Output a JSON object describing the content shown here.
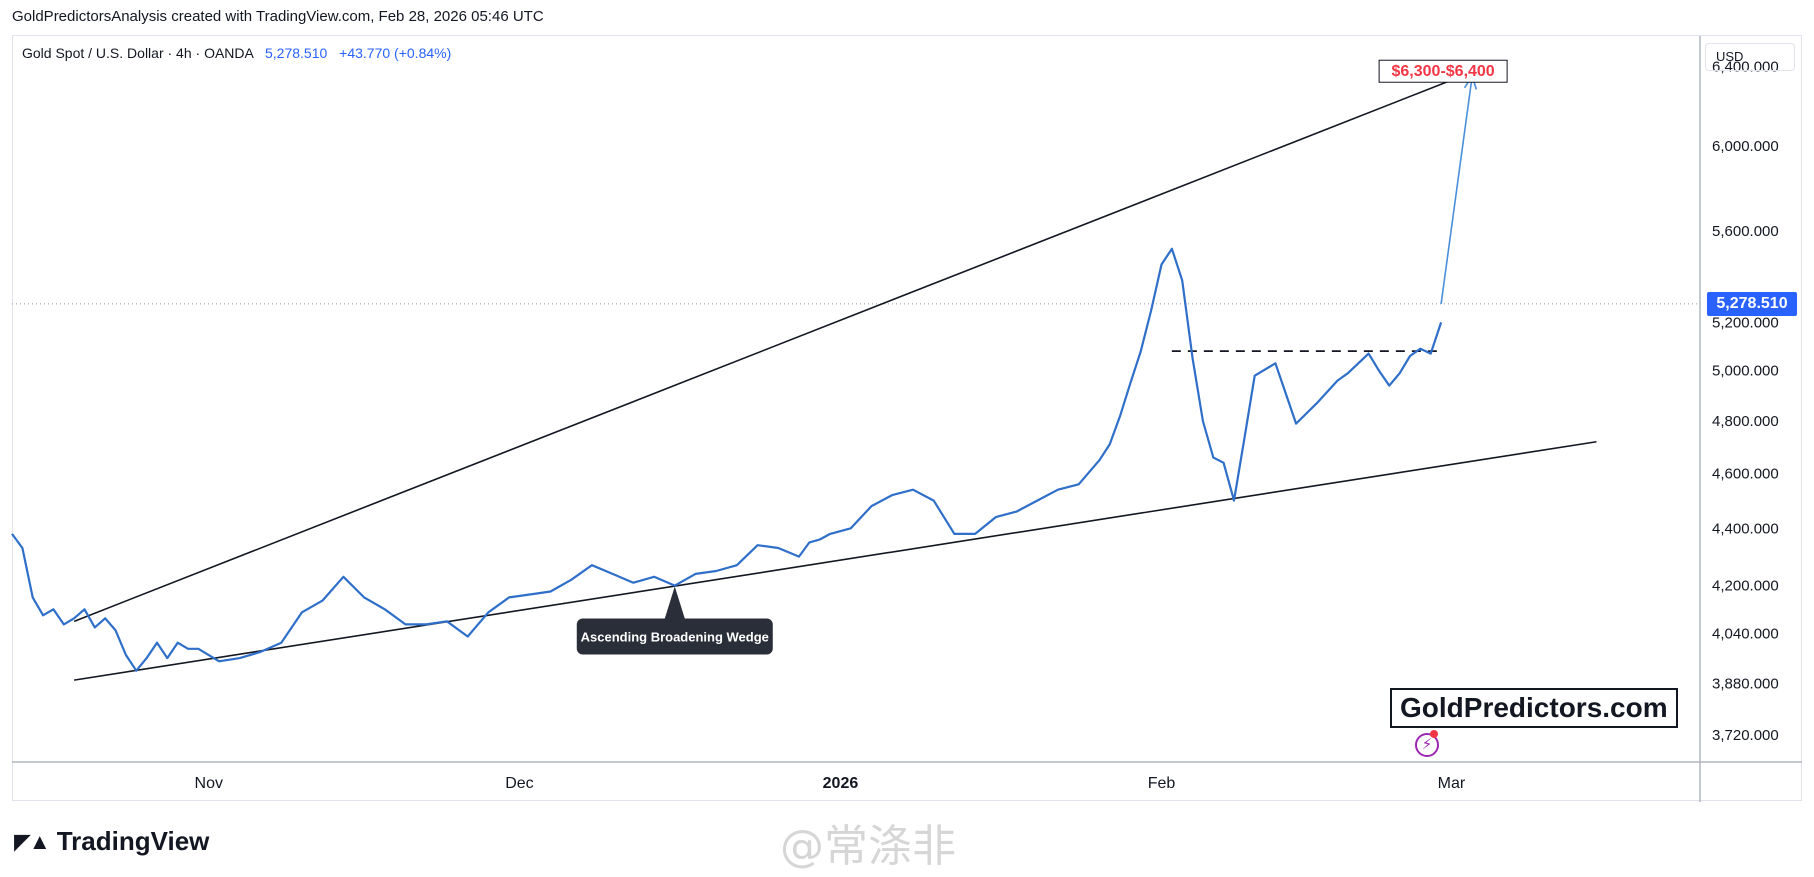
{
  "caption": "GoldPredictorsAnalysis created with TradingView.com, Feb 28, 2026 05:46 UTC",
  "legend": {
    "symbol": "Gold Spot / U.S. Dollar · 4h · OANDA",
    "last": "5,278.510",
    "change": "+43.770 (+0.84%)"
  },
  "currency": "USD",
  "footer_brand": "TradingView",
  "site_label": "GoldPredictors.com",
  "watermark": "@常涤非",
  "chart_data": {
    "type": "line",
    "title": "",
    "xlabel": "",
    "ylabel": "",
    "ylim": [
      3640,
      6560
    ],
    "y_scale": "log",
    "xlim": [
      "2025-10-13",
      "2026-03-25"
    ],
    "x_ticks": [
      {
        "date": "2025-11-01",
        "label": "Nov"
      },
      {
        "date": "2025-12-01",
        "label": "Dec"
      },
      {
        "date": "2026-01-01",
        "label": "2026"
      },
      {
        "date": "2026-02-01",
        "label": "Feb"
      },
      {
        "date": "2026-03-01",
        "label": "Mar"
      }
    ],
    "y_ticks": [
      {
        "value": 3720,
        "label": "3,720.000"
      },
      {
        "value": 3880,
        "label": "3,880.000"
      },
      {
        "value": 4040,
        "label": "4,040.000"
      },
      {
        "value": 4200,
        "label": "4,200.000"
      },
      {
        "value": 4400,
        "label": "4,400.000"
      },
      {
        "value": 4600,
        "label": "4,600.000"
      },
      {
        "value": 4800,
        "label": "4,800.000"
      },
      {
        "value": 5000,
        "label": "5,000.000"
      },
      {
        "value": 5200,
        "label": "5,200.000"
      },
      {
        "value": 5600,
        "label": "5,600.000"
      },
      {
        "value": 6000,
        "label": "6,000.000"
      },
      {
        "value": 6400,
        "label": "6,400.000"
      }
    ],
    "current_price": {
      "value": 5278.51,
      "label": "5,278.510"
    },
    "series": [
      {
        "color": "#2f6fc9",
        "x": [
          "2025-10-13",
          "2025-10-14",
          "2025-10-15",
          "2025-10-16",
          "2025-10-17",
          "2025-10-18",
          "2025-10-19",
          "2025-10-20",
          "2025-10-21",
          "2025-10-22",
          "2025-10-23",
          "2025-10-24",
          "2025-10-25",
          "2025-10-26",
          "2025-10-27",
          "2025-10-28",
          "2025-10-29",
          "2025-10-30",
          "2025-10-31",
          "2025-11-02",
          "2025-11-04",
          "2025-11-06",
          "2025-11-08",
          "2025-11-10",
          "2025-11-12",
          "2025-11-14",
          "2025-11-16",
          "2025-11-18",
          "2025-11-20",
          "2025-11-22",
          "2025-11-24",
          "2025-11-26",
          "2025-11-28",
          "2025-11-30",
          "2025-12-02",
          "2025-12-04",
          "2025-12-06",
          "2025-12-08",
          "2025-12-10",
          "2025-12-12",
          "2025-12-14",
          "2025-12-16",
          "2025-12-18",
          "2025-12-20",
          "2025-12-22",
          "2025-12-24",
          "2025-12-26",
          "2025-12-28",
          "2025-12-29",
          "2025-12-30",
          "2025-12-31",
          "2026-01-02",
          "2026-01-04",
          "2026-01-06",
          "2026-01-08",
          "2026-01-10",
          "2026-01-12",
          "2026-01-14",
          "2026-01-16",
          "2026-01-18",
          "2026-01-20",
          "2026-01-22",
          "2026-01-24",
          "2026-01-26",
          "2026-01-27",
          "2026-01-28",
          "2026-01-29",
          "2026-01-30",
          "2026-01-31",
          "2026-02-01",
          "2026-02-02",
          "2026-02-03",
          "2026-02-04",
          "2026-02-05",
          "2026-02-06",
          "2026-02-07",
          "2026-02-08",
          "2026-02-09",
          "2026-02-10",
          "2026-02-12",
          "2026-02-14",
          "2026-02-16",
          "2026-02-18",
          "2026-02-19",
          "2026-02-20",
          "2026-02-21",
          "2026-02-22",
          "2026-02-23",
          "2026-02-24",
          "2026-02-25",
          "2026-02-26",
          "2026-02-27",
          "2026-02-28"
        ],
        "y": [
          4380,
          4330,
          4160,
          4100,
          4120,
          4070,
          4090,
          4120,
          4060,
          4090,
          4050,
          3970,
          3920,
          3960,
          4010,
          3960,
          4010,
          3990,
          3990,
          3950,
          3960,
          3980,
          4010,
          4110,
          4150,
          4230,
          4160,
          4120,
          4070,
          4070,
          4080,
          4030,
          4110,
          4160,
          4170,
          4180,
          4220,
          4270,
          4240,
          4210,
          4230,
          4200,
          4240,
          4250,
          4270,
          4340,
          4330,
          4300,
          4350,
          4360,
          4380,
          4400,
          4480,
          4520,
          4540,
          4500,
          4380,
          4380,
          4440,
          4460,
          4500,
          4540,
          4560,
          4650,
          4710,
          4820,
          4950,
          5080,
          5250,
          5450,
          5520,
          5380,
          5050,
          4800,
          4660,
          4640,
          4500,
          4730,
          4980,
          5030,
          4790,
          4870,
          4960,
          4990,
          5030,
          5070,
          5000,
          4940,
          4990,
          5060,
          5090,
          5070,
          5200
        ]
      }
    ],
    "projection": {
      "from": {
        "x": "2026-02-28",
        "y": 5278.51
      },
      "to": {
        "x": "2026-03-03",
        "y": 6350
      },
      "color": "#4a90d9"
    },
    "trendlines": [
      {
        "name": "upper",
        "from": {
          "x": "2025-10-19",
          "y": 4080
        },
        "to": {
          "x": "2026-03-02",
          "y": 6350
        }
      },
      {
        "name": "lower",
        "from": {
          "x": "2025-10-19",
          "y": 3890
        },
        "to": {
          "x": "2026-03-15",
          "y": 4720
        }
      }
    ],
    "resistance": {
      "from": "2026-02-02",
      "to": "2026-02-28",
      "y": 5080
    },
    "annotations": [
      {
        "text": "$6,300-$6,400",
        "x": "2026-02-28",
        "y": 6370,
        "color": "#f23645"
      },
      {
        "text": "Ascending Broadening Wedge",
        "x": "2025-12-16",
        "y": 4030
      }
    ]
  }
}
